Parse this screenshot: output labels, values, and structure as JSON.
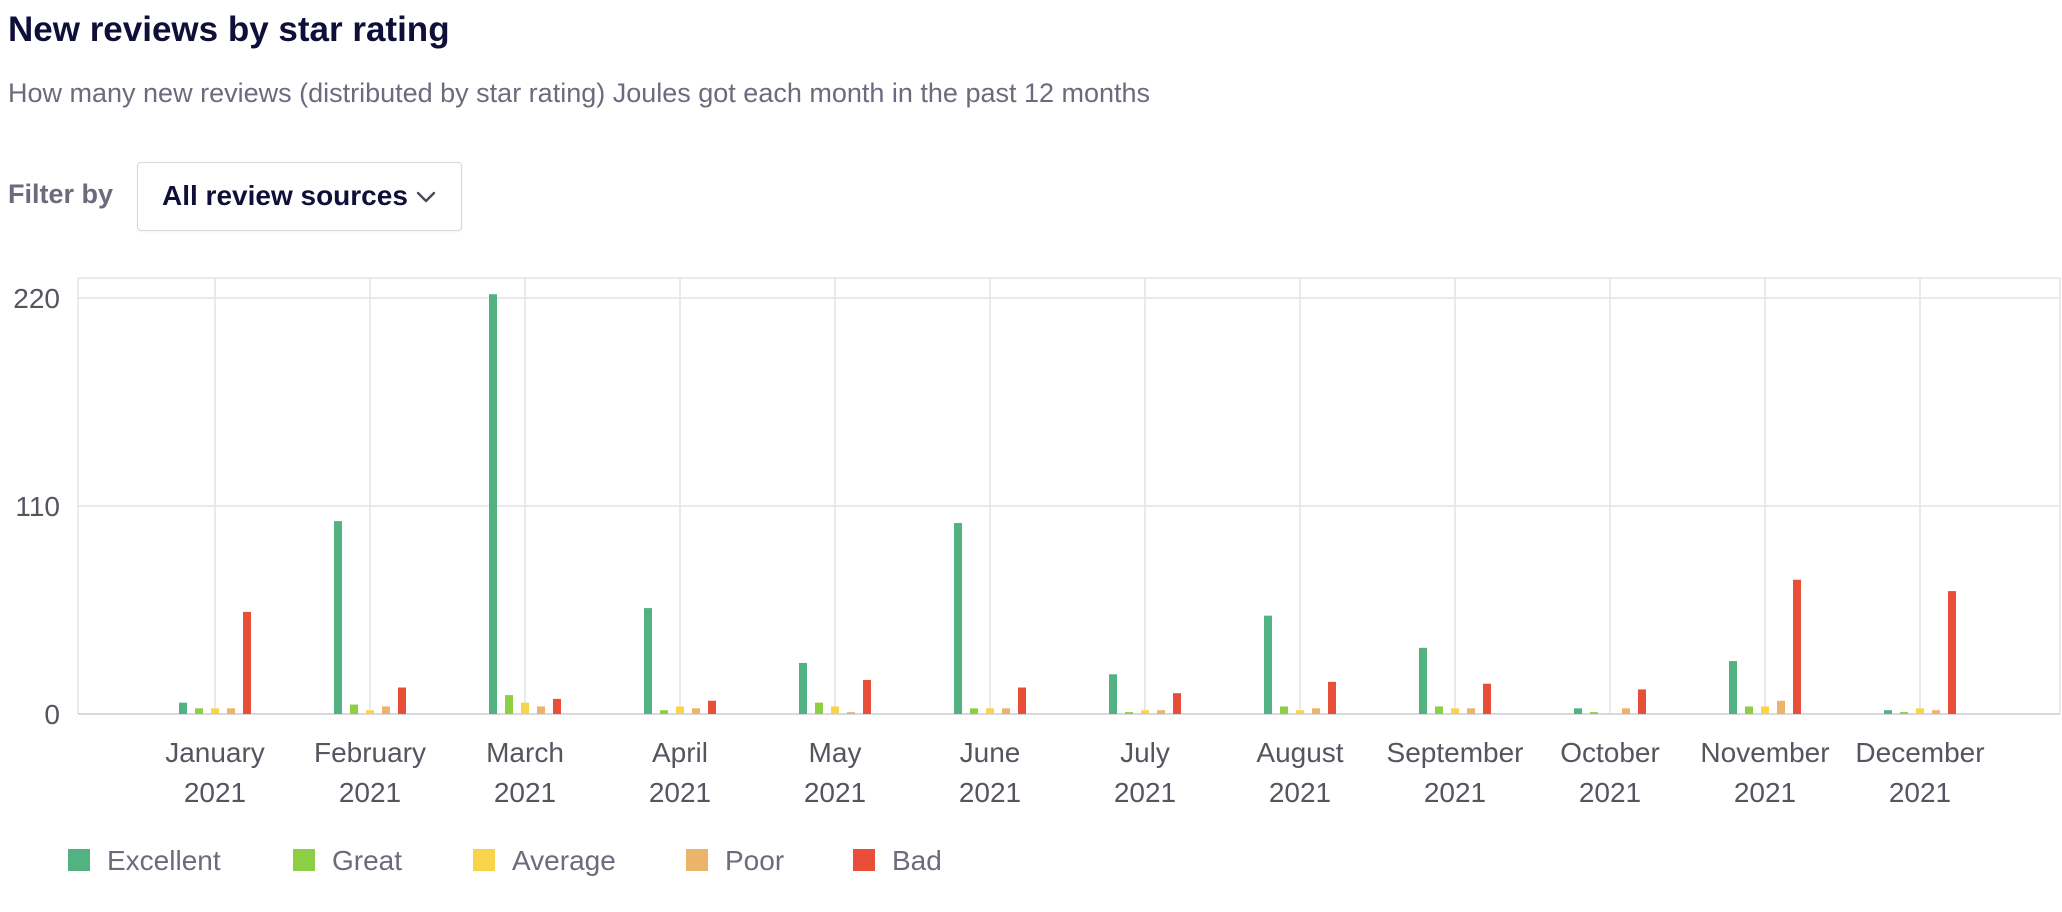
{
  "header": {
    "title": "New reviews by star rating",
    "subtitle": "How many new reviews (distributed by star rating) Joules got each month in the past 12 months"
  },
  "filter": {
    "label": "Filter by",
    "selected": "All review sources",
    "icon": "chevron-down-icon"
  },
  "colors": {
    "Excellent": "#52b282",
    "Great": "#8ccf45",
    "Average": "#f8d44a",
    "Poor": "#ebb46a",
    "Bad": "#e94e38",
    "grid": "#e3e3e8",
    "tick_text": "#55555f"
  },
  "chart_data": {
    "type": "bar",
    "title": "New reviews by star rating",
    "xlabel": "",
    "ylabel": "",
    "ylim": [
      0,
      225
    ],
    "yticks": [
      "0",
      "110",
      "220"
    ],
    "grid": true,
    "legend_position": "bottom-left",
    "categories": [
      [
        "January",
        "2021"
      ],
      [
        "February",
        "2021"
      ],
      [
        "March",
        "2021"
      ],
      [
        "April",
        "2021"
      ],
      [
        "May",
        "2021"
      ],
      [
        "June",
        "2021"
      ],
      [
        "July",
        "2021"
      ],
      [
        "August",
        "2021"
      ],
      [
        "September",
        "2021"
      ],
      [
        "October",
        "2021"
      ],
      [
        "November",
        "2021"
      ],
      [
        "December",
        "2021"
      ]
    ],
    "series": [
      {
        "name": "Excellent",
        "values": [
          6,
          102,
          222,
          56,
          27,
          101,
          21,
          52,
          35,
          3,
          28,
          2
        ]
      },
      {
        "name": "Great",
        "values": [
          3,
          5,
          10,
          2,
          6,
          3,
          1,
          4,
          4,
          1,
          4,
          1
        ]
      },
      {
        "name": "Average",
        "values": [
          3,
          2,
          6,
          4,
          4,
          3,
          2,
          2,
          3,
          0,
          4,
          3
        ]
      },
      {
        "name": "Poor",
        "values": [
          3,
          4,
          4,
          3,
          1,
          3,
          2,
          3,
          3,
          3,
          7,
          2
        ]
      },
      {
        "name": "Bad",
        "values": [
          54,
          14,
          8,
          7,
          18,
          14,
          11,
          17,
          16,
          13,
          71,
          65
        ]
      }
    ]
  }
}
